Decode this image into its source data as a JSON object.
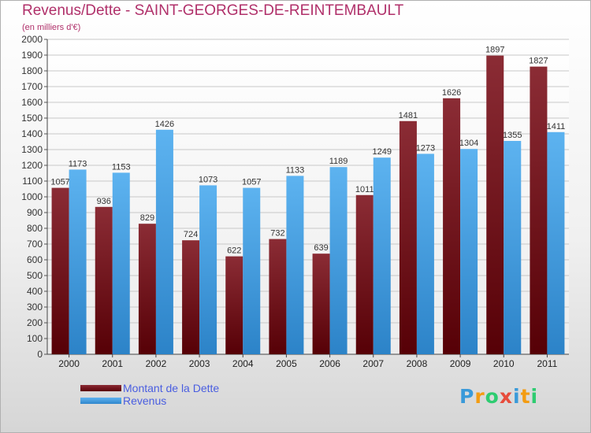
{
  "chart_data": {
    "type": "bar",
    "title": "Revenus/Dette - SAINT-GEORGES-DE-REINTEMBAULT",
    "subtitle": "(en milliers d'€)",
    "categories": [
      "2000",
      "2001",
      "2002",
      "2003",
      "2004",
      "2005",
      "2006",
      "2007",
      "2008",
      "2009",
      "2010",
      "2011"
    ],
    "series": [
      {
        "name": "Montant de la Dette",
        "color": "#7a1f28",
        "values": [
          1057,
          936,
          829,
          724,
          622,
          732,
          639,
          1011,
          1481,
          1626,
          1897,
          1827
        ],
        "labels": [
          "1057",
          "936",
          "829",
          "724",
          "622",
          "732",
          "639",
          "1011",
          "1481",
          "1626",
          "1897",
          "1827"
        ]
      },
      {
        "name": "Revenus",
        "color": "#4aa3e6",
        "values": [
          1173,
          1153,
          1426,
          1073,
          1057,
          1133,
          1189,
          1249,
          1273,
          1304,
          1355,
          1411
        ],
        "labels": [
          "1173",
          "1153",
          "1426",
          "1073",
          "1057",
          "1133",
          "1189",
          "1249",
          "1273",
          "1304",
          "1355",
          "1411"
        ]
      }
    ],
    "ylim": [
      0,
      2000
    ],
    "ytick_step": 100,
    "grid": true,
    "legend_position": "bottom-left"
  },
  "legend": {
    "debt_label": "Montant de la Dette",
    "revenue_label": "Revenus"
  },
  "logo": {
    "letters": [
      "P",
      "r",
      "o",
      "x",
      "i",
      "t",
      "i"
    ],
    "colors": [
      "#3a9ad9",
      "#f39c12",
      "#2ecc71",
      "#e74c3c",
      "#3a9ad9",
      "#f39c12",
      "#2ecc71"
    ]
  }
}
